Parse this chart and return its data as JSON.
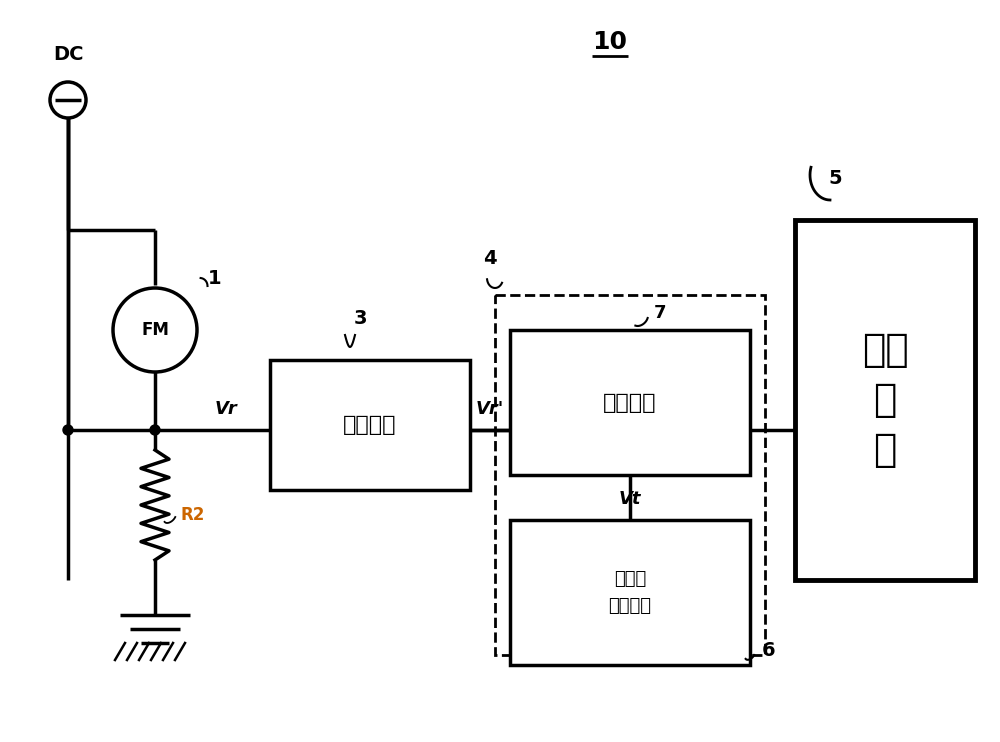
{
  "bg_color": "#ffffff",
  "title_text": "10",
  "dc_label": "DC",
  "fm_label": "FM",
  "box3_label": "放大电路",
  "box4_label": "比较电路",
  "box5_label": "微计\n算\n机",
  "box6_label": "三角波\n生成电路",
  "vr_label": "Vr",
  "vrp_label": "Vr'",
  "vt_label": "Vt",
  "r2_label": "R2",
  "label1": "1",
  "label3": "3",
  "label4": "4",
  "label5": "5",
  "label6": "6",
  "label7": "7",
  "r2_color": "#cc6600"
}
